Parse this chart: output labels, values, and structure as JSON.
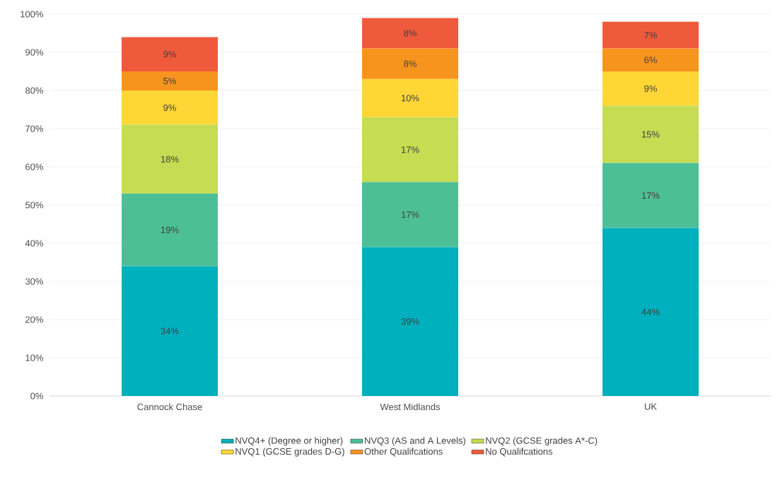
{
  "chart_data": {
    "type": "bar",
    "stacked": true,
    "categories": [
      "Cannock Chase",
      "West Midlands",
      "UK"
    ],
    "series": [
      {
        "name": "NVQ4+ (Degree or higher)",
        "color": "#00b0bd",
        "values": [
          34,
          39,
          44
        ],
        "value_labels": [
          "34%",
          "39%",
          "44%"
        ]
      },
      {
        "name": "NVQ3 (AS and A Levels)",
        "color": "#4dbf96",
        "values": [
          19,
          17,
          17
        ],
        "value_labels": [
          "19%",
          "17%",
          "17%"
        ]
      },
      {
        "name": "NVQ2 (GCSE grades A*-C)",
        "color": "#c6dc52",
        "values": [
          18,
          17,
          15
        ],
        "value_labels": [
          "18%",
          "17%",
          "15%"
        ]
      },
      {
        "name": "NVQ1 (GCSE grades D-G)",
        "color": "#fed736",
        "values": [
          9,
          10,
          9
        ],
        "value_labels": [
          "9%",
          "10%",
          "9%"
        ]
      },
      {
        "name": "Other Qualifcations",
        "color": "#f7941e",
        "values": [
          5,
          8,
          6
        ],
        "value_labels": [
          "5%",
          "8%",
          "6%"
        ]
      },
      {
        "name": "No Qualifcations",
        "color": "#f05a3c",
        "values": [
          9,
          8,
          7
        ],
        "value_labels": [
          "9%",
          "8%",
          "7%"
        ]
      }
    ],
    "ylim": [
      0,
      100
    ],
    "yticks": [
      {
        "value": 0,
        "label": "0%"
      },
      {
        "value": 10,
        "label": "10%"
      },
      {
        "value": 20,
        "label": "20%"
      },
      {
        "value": 30,
        "label": "30%"
      },
      {
        "value": 40,
        "label": "40%"
      },
      {
        "value": 50,
        "label": "50%"
      },
      {
        "value": 60,
        "label": "60%"
      },
      {
        "value": 70,
        "label": "70%"
      },
      {
        "value": 80,
        "label": "80%"
      },
      {
        "value": 90,
        "label": "90%"
      },
      {
        "value": 100,
        "label": "100%"
      }
    ],
    "grid": "y",
    "legend": "bottom"
  }
}
